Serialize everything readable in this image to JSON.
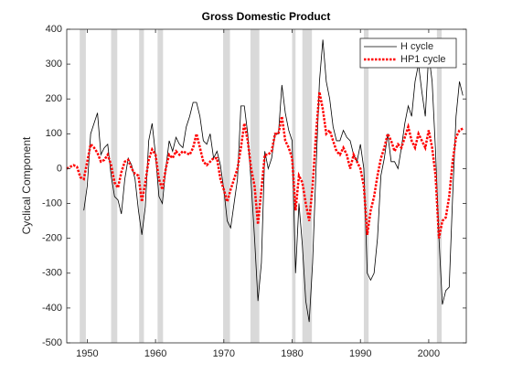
{
  "chart_data": {
    "type": "line",
    "title": "Gross Domestic Product",
    "ylabel": "Cyclical Component",
    "xlim": [
      1947,
      2005.5
    ],
    "ylim": [
      -500,
      400
    ],
    "xticks": [
      1950,
      1960,
      1970,
      1980,
      1990,
      2000
    ],
    "yticks": [
      -500,
      -400,
      -300,
      -200,
      -100,
      0,
      100,
      200,
      300,
      400
    ],
    "legend": "northeast",
    "shaded_regions": [
      [
        1948.9,
        1949.8
      ],
      [
        1953.5,
        1954.4
      ],
      [
        1957.6,
        1958.3
      ],
      [
        1960.3,
        1961.1
      ],
      [
        1969.9,
        1970.9
      ],
      [
        1973.9,
        1975.2
      ],
      [
        1980.0,
        1980.5
      ],
      [
        1981.5,
        1982.9
      ],
      [
        1990.5,
        1991.2
      ],
      [
        2001.2,
        2001.9
      ]
    ],
    "shade_color": "#d9d9d9",
    "x": [
      1947,
      1947.5,
      1948,
      1948.5,
      1949,
      1949.5,
      1950,
      1950.5,
      1951,
      1951.5,
      1952,
      1952.5,
      1953,
      1953.5,
      1954,
      1954.5,
      1955,
      1955.5,
      1956,
      1956.5,
      1957,
      1957.5,
      1958,
      1958.5,
      1959,
      1959.5,
      1960,
      1960.5,
      1961,
      1961.5,
      1962,
      1962.5,
      1963,
      1963.5,
      1964,
      1964.5,
      1965,
      1965.5,
      1966,
      1966.5,
      1967,
      1967.5,
      1968,
      1968.5,
      1969,
      1969.5,
      1970,
      1970.5,
      1971,
      1971.5,
      1972,
      1972.5,
      1973,
      1973.5,
      1974,
      1974.5,
      1975,
      1975.5,
      1976,
      1976.5,
      1977,
      1977.5,
      1978,
      1978.5,
      1979,
      1979.5,
      1980,
      1980.5,
      1981,
      1981.5,
      1982,
      1982.5,
      1983,
      1983.5,
      1984,
      1984.5,
      1985,
      1985.5,
      1986,
      1986.5,
      1987,
      1987.5,
      1988,
      1988.5,
      1989,
      1989.5,
      1990,
      1990.5,
      1991,
      1991.5,
      1992,
      1992.5,
      1993,
      1993.5,
      1994,
      1994.5,
      1995,
      1995.5,
      1996,
      1996.5,
      1997,
      1997.5,
      1998,
      1998.5,
      1999,
      1999.5,
      2000,
      2000.5,
      2001,
      2001.5,
      2002,
      2002.5,
      2003,
      2003.5,
      2004,
      2004.5,
      2005
    ],
    "series": [
      {
        "name": "H cycle",
        "color": "#000000",
        "style": "solid",
        "values": [
          null,
          null,
          null,
          null,
          null,
          -120,
          -50,
          100,
          130,
          160,
          40,
          60,
          70,
          -20,
          -80,
          -90,
          -130,
          -30,
          30,
          10,
          -30,
          -120,
          -190,
          -110,
          80,
          130,
          40,
          -80,
          -100,
          0,
          80,
          50,
          90,
          70,
          60,
          120,
          150,
          190,
          190,
          150,
          80,
          70,
          100,
          30,
          50,
          10,
          -60,
          -150,
          -170,
          -100,
          -30,
          180,
          180,
          100,
          -40,
          -200,
          -380,
          -270,
          50,
          0,
          30,
          100,
          100,
          240,
          160,
          110,
          80,
          -300,
          -100,
          -220,
          -380,
          -440,
          -270,
          0,
          250,
          370,
          250,
          200,
          120,
          80,
          80,
          110,
          90,
          80,
          40,
          20,
          70,
          0,
          -300,
          -320,
          -300,
          -200,
          -20,
          30,
          100,
          20,
          20,
          0,
          60,
          130,
          180,
          150,
          250,
          300,
          220,
          150,
          330,
          250,
          50,
          -200,
          -390,
          -350,
          -340,
          -80,
          150,
          250,
          210
        ]
      },
      {
        "name": "HP1 cycle",
        "color": "#ff0000",
        "style": "dotted",
        "values": [
          0,
          5,
          10,
          5,
          -25,
          -30,
          20,
          70,
          60,
          45,
          20,
          25,
          40,
          10,
          -40,
          -55,
          -10,
          20,
          25,
          0,
          -15,
          -20,
          -95,
          -40,
          25,
          55,
          40,
          -30,
          -60,
          0,
          40,
          30,
          50,
          40,
          50,
          45,
          40,
          60,
          100,
          60,
          20,
          10,
          20,
          30,
          30,
          -30,
          -60,
          -95,
          -60,
          -30,
          0,
          60,
          130,
          80,
          0,
          -50,
          -160,
          -60,
          40,
          40,
          50,
          100,
          100,
          150,
          80,
          60,
          30,
          -120,
          -20,
          -40,
          -100,
          -150,
          -50,
          100,
          220,
          170,
          100,
          110,
          80,
          50,
          40,
          60,
          40,
          0,
          40,
          20,
          0,
          -50,
          -190,
          -120,
          -80,
          -20,
          30,
          60,
          100,
          80,
          50,
          70,
          60,
          90,
          120,
          80,
          60,
          100,
          80,
          60,
          110,
          60,
          -20,
          -200,
          -150,
          -140,
          -80,
          20,
          90,
          110,
          115
        ]
      }
    ]
  }
}
